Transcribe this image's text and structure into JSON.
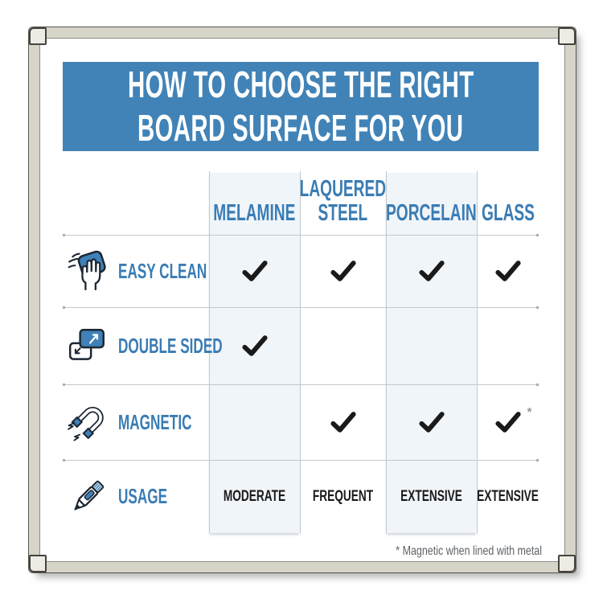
{
  "header": {
    "line1": "HOW TO CHOOSE THE RIGHT",
    "line2": "BOARD SURFACE FOR YOU"
  },
  "chart_data": {
    "type": "table",
    "title": "HOW TO CHOOSE THE RIGHT BOARD SURFACE FOR YOU",
    "columns": [
      "MELAMINE",
      "LAQUERED\nSTEEL",
      "PORCELAIN",
      "GLASS"
    ],
    "shaded_columns": [
      "MELAMINE",
      "PORCELAIN"
    ],
    "rows": [
      {
        "feature": "EASY CLEAN",
        "icon": "hand-wipe-icon",
        "cells": [
          "✓",
          "✓",
          "✓",
          "✓"
        ]
      },
      {
        "feature": "DOUBLE SIDED",
        "icon": "double-sided-icon",
        "cells": [
          "✓",
          "",
          "",
          ""
        ]
      },
      {
        "feature": "MAGNETIC",
        "icon": "magnet-icon",
        "cells": [
          "",
          "✓",
          "✓",
          "✓*"
        ]
      },
      {
        "feature": "USAGE",
        "icon": "marker-icon",
        "cells": [
          "MODERATE",
          "FREQUENT",
          "EXTENSIVE",
          "EXTENSIVE"
        ]
      }
    ],
    "footnote": "* Magnetic when lined with metal"
  },
  "colors": {
    "banner_blue": "#4183b7",
    "label_blue": "#3a7cb4",
    "shaded_column": "#f0f5fa",
    "checkmark": "#1a1a1a",
    "frame_gray": "#d7d4ca",
    "footnote_gray": "#5d6267"
  }
}
